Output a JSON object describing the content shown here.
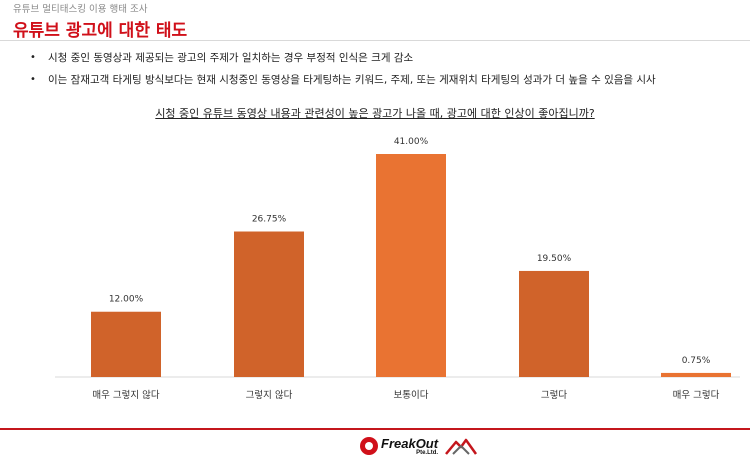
{
  "header": {
    "supertitle": "유튜브 멀티태스킹 이용 행태 조사",
    "title": "유튜브 광고에 대한 태도"
  },
  "bullets": [
    "시청 중인 동영상과 제공되는 광고의 주제가 일치하는 경우 부정적 인식은 크게 감소",
    "이는 잠재고객 타게팅 방식보다는 현재 시청중인 동영상을 타게팅하는 키워드, 주제, 또는 게재위치 타게팅의 성과가 더 높을 수 있음을 시사"
  ],
  "chart_data": {
    "type": "bar",
    "title": "시청 중인 유튜브 동영상 내용과 관련성이 높은 광고가 나올 때, 광고에 대한 인상이 좋아집니까?",
    "categories": [
      "매우 그렇지 않다",
      "그렇지 않다",
      "보통이다",
      "그렇다",
      "매우 그렇다"
    ],
    "values": [
      12.0,
      26.75,
      41.0,
      19.5,
      0.75
    ],
    "value_labels": [
      "12.00%",
      "26.75%",
      "41.00%",
      "19.50%",
      "0.75%"
    ],
    "colors": [
      "#d0632a",
      "#d0632a",
      "#e97332",
      "#d0632a",
      "#e97332"
    ],
    "xlabel": "",
    "ylabel": "",
    "ylim": [
      0,
      41
    ],
    "grid": false,
    "legend": "none"
  },
  "footer": {
    "logo_name": "FreakOut",
    "logo_sub": "Pte.Ltd."
  }
}
